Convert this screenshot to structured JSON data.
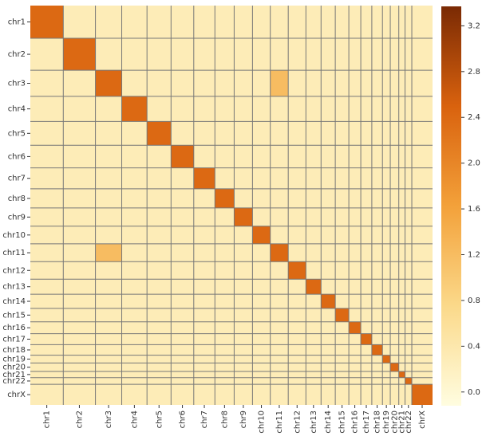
{
  "chart_data": {
    "type": "heatmap",
    "categories": [
      "chr1",
      "chr2",
      "chr3",
      "chr4",
      "chr5",
      "chr6",
      "chr7",
      "chr8",
      "chr9",
      "chr10",
      "chr11",
      "chr12",
      "chr13",
      "chr14",
      "chr15",
      "chr16",
      "chr17",
      "chr18",
      "chr19",
      "chr20",
      "chr21",
      "chr22",
      "chrX"
    ],
    "values": [
      [
        2.4,
        0.3,
        0.3,
        0.3,
        0.3,
        0.3,
        0.3,
        0.3,
        0.3,
        0.3,
        0.3,
        0.3,
        0.3,
        0.3,
        0.3,
        0.3,
        0.3,
        0.3,
        0.3,
        0.3,
        0.3,
        0.3,
        0.3
      ],
      [
        0.3,
        2.4,
        0.3,
        0.3,
        0.3,
        0.3,
        0.3,
        0.3,
        0.3,
        0.3,
        0.3,
        0.3,
        0.3,
        0.3,
        0.3,
        0.3,
        0.3,
        0.3,
        0.3,
        0.3,
        0.3,
        0.3,
        0.3
      ],
      [
        0.3,
        0.3,
        2.4,
        0.3,
        0.3,
        0.3,
        0.3,
        0.3,
        0.3,
        0.3,
        1.2,
        0.3,
        0.3,
        0.3,
        0.3,
        0.3,
        0.3,
        0.3,
        0.3,
        0.3,
        0.3,
        0.3,
        0.3
      ],
      [
        0.3,
        0.3,
        0.3,
        2.4,
        0.3,
        0.3,
        0.3,
        0.3,
        0.3,
        0.3,
        0.3,
        0.3,
        0.3,
        0.3,
        0.3,
        0.3,
        0.3,
        0.3,
        0.3,
        0.3,
        0.3,
        0.3,
        0.3
      ],
      [
        0.3,
        0.3,
        0.3,
        0.3,
        2.4,
        0.3,
        0.3,
        0.3,
        0.3,
        0.3,
        0.3,
        0.3,
        0.3,
        0.3,
        0.3,
        0.3,
        0.3,
        0.3,
        0.3,
        0.3,
        0.3,
        0.3,
        0.3
      ],
      [
        0.3,
        0.3,
        0.3,
        0.3,
        0.3,
        2.4,
        0.3,
        0.3,
        0.3,
        0.3,
        0.3,
        0.3,
        0.3,
        0.3,
        0.3,
        0.3,
        0.3,
        0.3,
        0.3,
        0.3,
        0.3,
        0.3,
        0.3
      ],
      [
        0.3,
        0.3,
        0.3,
        0.3,
        0.3,
        0.3,
        2.4,
        0.3,
        0.3,
        0.3,
        0.3,
        0.3,
        0.3,
        0.3,
        0.3,
        0.3,
        0.3,
        0.3,
        0.3,
        0.3,
        0.3,
        0.3,
        0.3
      ],
      [
        0.3,
        0.3,
        0.3,
        0.3,
        0.3,
        0.3,
        0.3,
        2.4,
        0.3,
        0.3,
        0.3,
        0.3,
        0.3,
        0.3,
        0.3,
        0.3,
        0.3,
        0.3,
        0.3,
        0.3,
        0.3,
        0.3,
        0.3
      ],
      [
        0.3,
        0.3,
        0.3,
        0.3,
        0.3,
        0.3,
        0.3,
        0.3,
        2.4,
        0.3,
        0.3,
        0.3,
        0.3,
        0.3,
        0.3,
        0.3,
        0.3,
        0.3,
        0.3,
        0.3,
        0.3,
        0.3,
        0.3
      ],
      [
        0.3,
        0.3,
        0.3,
        0.3,
        0.3,
        0.3,
        0.3,
        0.3,
        0.3,
        2.4,
        0.3,
        0.3,
        0.3,
        0.3,
        0.3,
        0.3,
        0.3,
        0.3,
        0.3,
        0.3,
        0.3,
        0.3,
        0.3
      ],
      [
        0.3,
        0.3,
        1.2,
        0.3,
        0.3,
        0.3,
        0.3,
        0.3,
        0.3,
        0.3,
        2.4,
        0.3,
        0.3,
        0.3,
        0.3,
        0.3,
        0.3,
        0.3,
        0.3,
        0.3,
        0.3,
        0.3,
        0.3
      ],
      [
        0.3,
        0.3,
        0.3,
        0.3,
        0.3,
        0.3,
        0.3,
        0.3,
        0.3,
        0.3,
        0.3,
        2.4,
        0.3,
        0.3,
        0.3,
        0.3,
        0.3,
        0.3,
        0.3,
        0.3,
        0.3,
        0.3,
        0.3
      ],
      [
        0.3,
        0.3,
        0.3,
        0.3,
        0.3,
        0.3,
        0.3,
        0.3,
        0.3,
        0.3,
        0.3,
        0.3,
        2.4,
        0.3,
        0.3,
        0.3,
        0.3,
        0.3,
        0.3,
        0.3,
        0.3,
        0.3,
        0.3
      ],
      [
        0.3,
        0.3,
        0.3,
        0.3,
        0.3,
        0.3,
        0.3,
        0.3,
        0.3,
        0.3,
        0.3,
        0.3,
        0.3,
        2.4,
        0.3,
        0.3,
        0.3,
        0.3,
        0.3,
        0.3,
        0.3,
        0.3,
        0.3
      ],
      [
        0.3,
        0.3,
        0.3,
        0.3,
        0.3,
        0.3,
        0.3,
        0.3,
        0.3,
        0.3,
        0.3,
        0.3,
        0.3,
        0.3,
        2.4,
        0.3,
        0.3,
        0.3,
        0.3,
        0.3,
        0.3,
        0.3,
        0.3
      ],
      [
        0.3,
        0.3,
        0.3,
        0.3,
        0.3,
        0.3,
        0.3,
        0.3,
        0.3,
        0.3,
        0.3,
        0.3,
        0.3,
        0.3,
        0.3,
        2.4,
        0.3,
        0.3,
        0.3,
        0.3,
        0.3,
        0.3,
        0.3
      ],
      [
        0.3,
        0.3,
        0.3,
        0.3,
        0.3,
        0.3,
        0.3,
        0.3,
        0.3,
        0.3,
        0.3,
        0.3,
        0.3,
        0.3,
        0.3,
        0.3,
        2.4,
        0.3,
        0.3,
        0.3,
        0.3,
        0.3,
        0.3
      ],
      [
        0.3,
        0.3,
        0.3,
        0.3,
        0.3,
        0.3,
        0.3,
        0.3,
        0.3,
        0.3,
        0.3,
        0.3,
        0.3,
        0.3,
        0.3,
        0.3,
        0.3,
        2.4,
        0.3,
        0.3,
        0.3,
        0.3,
        0.3
      ],
      [
        0.3,
        0.3,
        0.3,
        0.3,
        0.3,
        0.3,
        0.3,
        0.3,
        0.3,
        0.3,
        0.3,
        0.3,
        0.3,
        0.3,
        0.3,
        0.3,
        0.3,
        0.3,
        2.4,
        0.3,
        0.3,
        0.3,
        0.3
      ],
      [
        0.3,
        0.3,
        0.3,
        0.3,
        0.3,
        0.3,
        0.3,
        0.3,
        0.3,
        0.3,
        0.3,
        0.3,
        0.3,
        0.3,
        0.3,
        0.3,
        0.3,
        0.3,
        0.3,
        2.4,
        0.3,
        0.3,
        0.3
      ],
      [
        0.3,
        0.3,
        0.3,
        0.3,
        0.3,
        0.3,
        0.3,
        0.3,
        0.3,
        0.3,
        0.3,
        0.3,
        0.3,
        0.3,
        0.3,
        0.3,
        0.3,
        0.3,
        0.3,
        0.3,
        2.4,
        0.3,
        0.3
      ],
      [
        0.3,
        0.3,
        0.3,
        0.3,
        0.3,
        0.3,
        0.3,
        0.3,
        0.3,
        0.3,
        0.3,
        0.3,
        0.3,
        0.3,
        0.3,
        0.3,
        0.3,
        0.3,
        0.3,
        0.3,
        0.3,
        2.4,
        0.3
      ],
      [
        0.3,
        0.3,
        0.3,
        0.3,
        0.3,
        0.3,
        0.3,
        0.3,
        0.3,
        0.3,
        0.3,
        0.3,
        0.3,
        0.3,
        0.3,
        0.3,
        0.3,
        0.3,
        0.3,
        0.3,
        0.3,
        0.3,
        2.4
      ]
    ],
    "colorbar": {
      "lim": [
        -0.12,
        3.37
      ],
      "ticks": [
        {
          "value": 0,
          "label": "0.0"
        },
        {
          "value": 0.4,
          "label": "0.4"
        },
        {
          "value": 0.8,
          "label": "0.8"
        },
        {
          "value": 1.2,
          "label": "1.2"
        },
        {
          "value": 1.6,
          "label": "1.6"
        },
        {
          "value": 2,
          "label": "2.0"
        },
        {
          "value": 2.4,
          "label": "2.4"
        },
        {
          "value": 2.8,
          "label": "2.8"
        },
        {
          "value": 3.2,
          "label": "3.2"
        }
      ],
      "colors": [
        "#fffde0",
        "#fbd98a",
        "#f3a13a",
        "#d9620e",
        "#7a2a04"
      ]
    }
  }
}
